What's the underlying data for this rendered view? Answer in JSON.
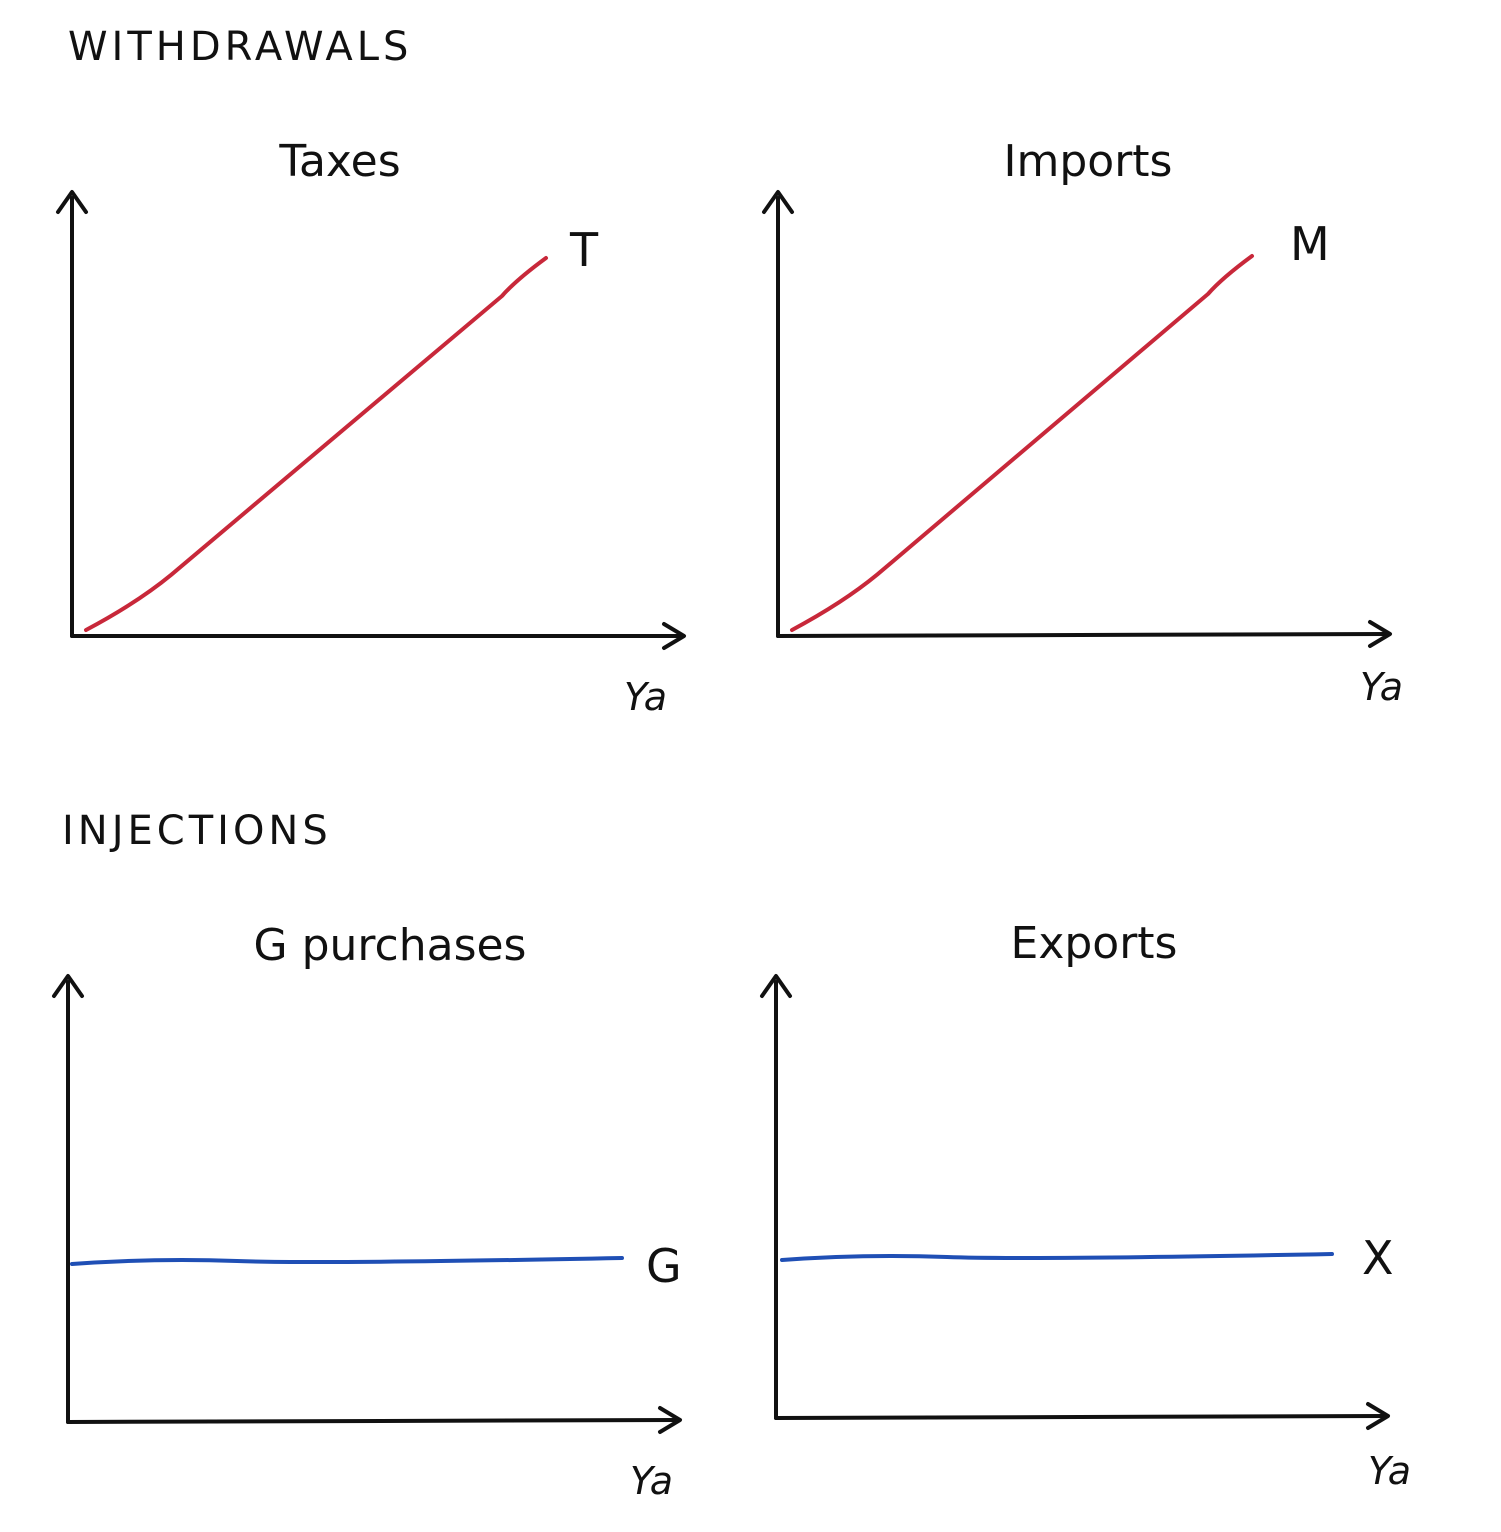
{
  "sections": {
    "withdrawals": "WITHDRAWALS",
    "injections": "INJECTIONS"
  },
  "colors": {
    "ink": "#111111",
    "withdrawal_line": "#c8283a",
    "injection_line": "#1f4fb5"
  },
  "chart_data": [
    {
      "type": "line",
      "title": "Taxes",
      "xlabel": "Ya",
      "ylabel": "",
      "grid": false,
      "series": [
        {
          "name": "T",
          "shape": "rising",
          "x": [
            0,
            1
          ],
          "y": [
            0,
            1
          ]
        }
      ]
    },
    {
      "type": "line",
      "title": "Imports",
      "xlabel": "Ya",
      "ylabel": "",
      "grid": false,
      "series": [
        {
          "name": "M",
          "shape": "rising",
          "x": [
            0,
            1
          ],
          "y": [
            0,
            1
          ]
        }
      ]
    },
    {
      "type": "line",
      "title": "G purchases",
      "xlabel": "Ya",
      "ylabel": "",
      "grid": false,
      "series": [
        {
          "name": "G",
          "shape": "constant",
          "x": [
            0,
            1
          ],
          "y": [
            0.5,
            0.5
          ]
        }
      ]
    },
    {
      "type": "line",
      "title": "Exports",
      "xlabel": "Ya",
      "ylabel": "",
      "grid": false,
      "series": [
        {
          "name": "X",
          "shape": "constant",
          "x": [
            0,
            1
          ],
          "y": [
            0.5,
            0.5
          ]
        }
      ]
    }
  ]
}
